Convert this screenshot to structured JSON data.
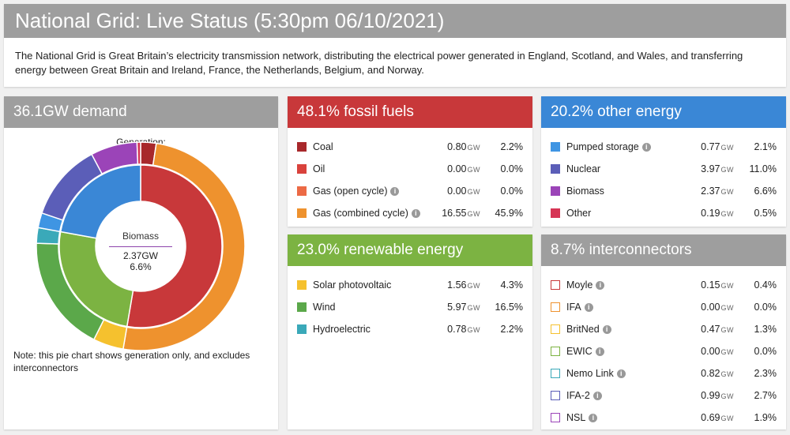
{
  "header": {
    "title": "National Grid: Live Status (5:30pm 06/10/2021)",
    "description": "The National Grid is Great Britain’s electricity transmission network, distributing the electrical power generated in England, Scotland, and Wales, and transferring energy between Great Britain and Ireland, France, the Netherlands, Belgium, and Norway."
  },
  "demand": {
    "title": "36.1GW demand",
    "chart_title": "Generation:",
    "center": {
      "name": "Biomass",
      "gw": "2.37GW",
      "pct": "6.6%"
    },
    "note": "Note: this pie chart shows generation only, and excludes interconnectors"
  },
  "fossil": {
    "title": "48.1% fossil fuels",
    "rows": [
      {
        "label": "Coal",
        "gw": "0.80",
        "unit": "GW",
        "pct": "2.2%",
        "color": "#a8282b",
        "info": false
      },
      {
        "label": "Oil",
        "gw": "0.00",
        "unit": "GW",
        "pct": "0.0%",
        "color": "#d9423c",
        "info": false
      },
      {
        "label": "Gas (open cycle)",
        "gw": "0.00",
        "unit": "GW",
        "pct": "0.0%",
        "color": "#ec6a45",
        "info": true
      },
      {
        "label": "Gas (combined cycle)",
        "gw": "16.55",
        "unit": "GW",
        "pct": "45.9%",
        "color": "#ee922e",
        "info": true
      }
    ]
  },
  "other": {
    "title": "20.2% other energy",
    "rows": [
      {
        "label": "Pumped storage",
        "gw": "0.77",
        "unit": "GW",
        "pct": "2.1%",
        "color": "#3f95e3",
        "info": true
      },
      {
        "label": "Nuclear",
        "gw": "3.97",
        "unit": "GW",
        "pct": "11.0%",
        "color": "#5b5eb8",
        "info": false
      },
      {
        "label": "Biomass",
        "gw": "2.37",
        "unit": "GW",
        "pct": "6.6%",
        "color": "#9b44b8",
        "info": false
      },
      {
        "label": "Other",
        "gw": "0.19",
        "unit": "GW",
        "pct": "0.5%",
        "color": "#d63555",
        "info": false
      }
    ]
  },
  "renewable": {
    "title": "23.0% renewable energy",
    "rows": [
      {
        "label": "Solar photovoltaic",
        "gw": "1.56",
        "unit": "GW",
        "pct": "4.3%",
        "color": "#f5c12e",
        "info": false
      },
      {
        "label": "Wind",
        "gw": "5.97",
        "unit": "GW",
        "pct": "16.5%",
        "color": "#5ba84a",
        "info": false
      },
      {
        "label": "Hydroelectric",
        "gw": "0.78",
        "unit": "GW",
        "pct": "2.2%",
        "color": "#3aa9b9",
        "info": false
      }
    ]
  },
  "interconnectors": {
    "title": "8.7% interconnectors",
    "rows": [
      {
        "label": "Moyle",
        "gw": "0.15",
        "unit": "GW",
        "pct": "0.4%",
        "color": "#c8383a",
        "info": true
      },
      {
        "label": "IFA",
        "gw": "0.00",
        "unit": "GW",
        "pct": "0.0%",
        "color": "#ee922e",
        "info": true
      },
      {
        "label": "BritNed",
        "gw": "0.47",
        "unit": "GW",
        "pct": "1.3%",
        "color": "#f5c12e",
        "info": true
      },
      {
        "label": "EWIC",
        "gw": "0.00",
        "unit": "GW",
        "pct": "0.0%",
        "color": "#7cb342",
        "info": true
      },
      {
        "label": "Nemo Link",
        "gw": "0.82",
        "unit": "GW",
        "pct": "2.3%",
        "color": "#3aa9b9",
        "info": true
      },
      {
        "label": "IFA-2",
        "gw": "0.99",
        "unit": "GW",
        "pct": "2.7%",
        "color": "#5b5eb8",
        "info": true
      },
      {
        "label": "NSL",
        "gw": "0.69",
        "unit": "GW",
        "pct": "1.9%",
        "color": "#9b44b8",
        "info": true
      }
    ]
  },
  "chart_data": {
    "type": "pie",
    "outer": [
      {
        "name": "Coal",
        "value": 2.2,
        "color": "#a8282b"
      },
      {
        "name": "Oil",
        "value": 0.0,
        "color": "#d9423c"
      },
      {
        "name": "Gas (open cycle)",
        "value": 0.0,
        "color": "#ec6a45"
      },
      {
        "name": "Gas (combined cycle)",
        "value": 45.9,
        "color": "#ee922e"
      },
      {
        "name": "Solar photovoltaic",
        "value": 4.3,
        "color": "#f5c12e"
      },
      {
        "name": "Wind",
        "value": 16.5,
        "color": "#5ba84a"
      },
      {
        "name": "Hydroelectric",
        "value": 2.2,
        "color": "#3aa9b9"
      },
      {
        "name": "Pumped storage",
        "value": 2.1,
        "color": "#3f95e3"
      },
      {
        "name": "Nuclear",
        "value": 11.0,
        "color": "#5b5eb8"
      },
      {
        "name": "Biomass",
        "value": 6.6,
        "color": "#9b44b8"
      },
      {
        "name": "Other",
        "value": 0.5,
        "color": "#d63555"
      }
    ],
    "inner": [
      {
        "name": "fossil fuels",
        "value": 48.1,
        "color": "#c8383a"
      },
      {
        "name": "renewable energy",
        "value": 23.0,
        "color": "#7cb342"
      },
      {
        "name": "other energy",
        "value": 20.2,
        "color": "#3a87d6"
      }
    ]
  }
}
